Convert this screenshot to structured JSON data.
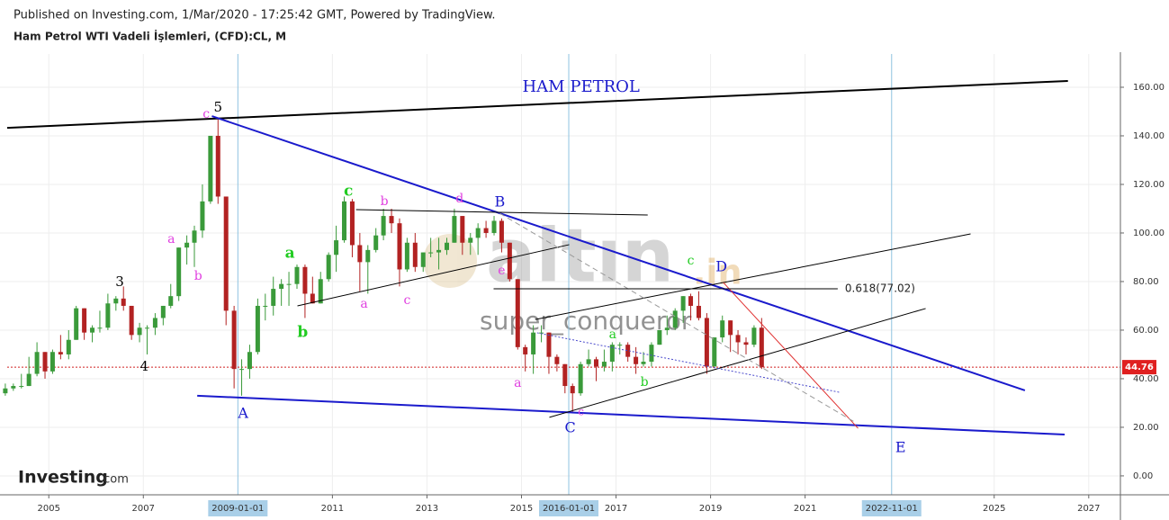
{
  "chart_data": {
    "type": "candlestick",
    "title": "Published on Investing.com, 1/Mar/2020 - 17:25:42 GMT, Powered by TradingView.",
    "subtitle": "Ham Petrol WTI Vadeli İşlemleri, (CFD):CL, M",
    "up_color": "#3a9a3a",
    "down_color": "#b22222",
    "xlim": [
      2004.12,
      2027.67
    ],
    "ylim": [
      -7.8,
      173.7
    ],
    "xticks": [
      2005,
      2007,
      2011,
      2013,
      2015,
      2017,
      2019,
      2021,
      2025,
      2027
    ],
    "yticks": [
      {
        "value": 0,
        "label": "0.00"
      },
      {
        "value": 20,
        "label": "20.00"
      },
      {
        "value": 40,
        "label": "40.00"
      },
      {
        "value": 60,
        "label": "60.00"
      },
      {
        "value": 80,
        "label": "80.00"
      },
      {
        "value": 100,
        "label": "100.00"
      },
      {
        "value": 120,
        "label": "120.00"
      },
      {
        "value": 140,
        "label": "140.00"
      },
      {
        "value": 160,
        "label": "160.00"
      }
    ],
    "grid": true,
    "vlines": [
      {
        "value": 2009.0,
        "label": "2009-01-01"
      },
      {
        "value": 2016.0,
        "label": "2016-01-01"
      },
      {
        "value": 2022.83,
        "label": "2022-11-01"
      }
    ],
    "price_line": 44.76,
    "x": [
      2004.08,
      2004.25,
      2004.42,
      2004.58,
      2004.75,
      2004.92,
      2005.08,
      2005.25,
      2005.42,
      2005.58,
      2005.75,
      2005.92,
      2006.08,
      2006.25,
      2006.42,
      2006.58,
      2006.75,
      2006.92,
      2007.08,
      2007.25,
      2007.42,
      2007.58,
      2007.75,
      2007.92,
      2008.08,
      2008.25,
      2008.42,
      2008.58,
      2008.75,
      2008.92,
      2009.08,
      2009.25,
      2009.42,
      2009.58,
      2009.75,
      2009.92,
      2010.08,
      2010.25,
      2010.42,
      2010.58,
      2010.75,
      2010.92,
      2011.08,
      2011.25,
      2011.42,
      2011.58,
      2011.75,
      2011.92,
      2012.08,
      2012.25,
      2012.42,
      2012.58,
      2012.75,
      2012.92,
      2013.08,
      2013.25,
      2013.42,
      2013.58,
      2013.75,
      2013.92,
      2014.08,
      2014.25,
      2014.42,
      2014.58,
      2014.75,
      2014.92,
      2015.08,
      2015.25,
      2015.42,
      2015.58,
      2015.75,
      2015.92,
      2016.08,
      2016.25,
      2016.42,
      2016.58,
      2016.75,
      2016.92,
      2017.08,
      2017.25,
      2017.42,
      2017.58,
      2017.75,
      2017.92,
      2018.08,
      2018.25,
      2018.42,
      2018.58,
      2018.75,
      2018.92,
      2019.08,
      2019.25,
      2019.42,
      2019.58,
      2019.75,
      2019.92,
      2020.08
    ],
    "values": [
      [
        34,
        38,
        33,
        36
      ],
      [
        36,
        38,
        35,
        37
      ],
      [
        37,
        42,
        36,
        37
      ],
      [
        37,
        49,
        37,
        42
      ],
      [
        42,
        55,
        41,
        51
      ],
      [
        51,
        51,
        40,
        43
      ],
      [
        43,
        52,
        42,
        51
      ],
      [
        51,
        58,
        48,
        50
      ],
      [
        50,
        60,
        48,
        56
      ],
      [
        56,
        70,
        56,
        69
      ],
      [
        69,
        69,
        56,
        59
      ],
      [
        59,
        62,
        55,
        61
      ],
      [
        61,
        68,
        59,
        61
      ],
      [
        61,
        75,
        60,
        71
      ],
      [
        71,
        74,
        68,
        73
      ],
      [
        73,
        78,
        68,
        70
      ],
      [
        70,
        70,
        56,
        58
      ],
      [
        58,
        63,
        55,
        61
      ],
      [
        61,
        62,
        50,
        61
      ],
      [
        61,
        67,
        58,
        65
      ],
      [
        65,
        70,
        62,
        70
      ],
      [
        70,
        79,
        69,
        74
      ],
      [
        74,
        94,
        72,
        94
      ],
      [
        94,
        99,
        87,
        96
      ],
      [
        96,
        103,
        86,
        101
      ],
      [
        101,
        120,
        98,
        113
      ],
      [
        113,
        140,
        112,
        140
      ],
      [
        140,
        147,
        112,
        115
      ],
      [
        115,
        115,
        62,
        68
      ],
      [
        68,
        70,
        36,
        44
      ],
      [
        44,
        48,
        33,
        44
      ],
      [
        44,
        54,
        40,
        51
      ],
      [
        51,
        73,
        50,
        70
      ],
      [
        70,
        75,
        64,
        70
      ],
      [
        70,
        82,
        66,
        77
      ],
      [
        77,
        81,
        70,
        79
      ],
      [
        79,
        84,
        70,
        79
      ],
      [
        79,
        87,
        77,
        86
      ],
      [
        86,
        87,
        65,
        75
      ],
      [
        75,
        82,
        71,
        71
      ],
      [
        71,
        84,
        71,
        81
      ],
      [
        81,
        92,
        80,
        91
      ],
      [
        91,
        103,
        84,
        97
      ],
      [
        97,
        115,
        96,
        113
      ],
      [
        113,
        114,
        90,
        95
      ],
      [
        95,
        100,
        76,
        88
      ],
      [
        88,
        95,
        75,
        93
      ],
      [
        93,
        102,
        92,
        99
      ],
      [
        99,
        110,
        97,
        107
      ],
      [
        107,
        110,
        100,
        104
      ],
      [
        104,
        106,
        78,
        85
      ],
      [
        85,
        98,
        84,
        96
      ],
      [
        96,
        100,
        84,
        86
      ],
      [
        86,
        92,
        84,
        92
      ],
      [
        92,
        98,
        90,
        92
      ],
      [
        92,
        98,
        85,
        93
      ],
      [
        93,
        98,
        91,
        96
      ],
      [
        96,
        110,
        96,
        107
      ],
      [
        107,
        107,
        91,
        96
      ],
      [
        96,
        100,
        91,
        98
      ],
      [
        98,
        104,
        91,
        102
      ],
      [
        102,
        105,
        98,
        100
      ],
      [
        100,
        107,
        99,
        105
      ],
      [
        105,
        106,
        92,
        96
      ],
      [
        96,
        96,
        80,
        81
      ],
      [
        81,
        81,
        52,
        53
      ],
      [
        53,
        54,
        43,
        50
      ],
      [
        50,
        62,
        42,
        59
      ],
      [
        59,
        62,
        55,
        59
      ],
      [
        59,
        59,
        42,
        49
      ],
      [
        49,
        50,
        43,
        46
      ],
      [
        46,
        46,
        34,
        37
      ],
      [
        37,
        38,
        26,
        34
      ],
      [
        34,
        47,
        33,
        46
      ],
      [
        46,
        52,
        45,
        48
      ],
      [
        48,
        49,
        39,
        45
      ],
      [
        45,
        52,
        43,
        47
      ],
      [
        47,
        55,
        43,
        54
      ],
      [
        54,
        55,
        50,
        54
      ],
      [
        54,
        55,
        47,
        49
      ],
      [
        49,
        53,
        42,
        46
      ],
      [
        46,
        51,
        45,
        47
      ],
      [
        47,
        55,
        45,
        54
      ],
      [
        54,
        60,
        54,
        60
      ],
      [
        60,
        66,
        58,
        61
      ],
      [
        61,
        69,
        60,
        68
      ],
      [
        68,
        74,
        63,
        74
      ],
      [
        74,
        75,
        64,
        70
      ],
      [
        70,
        76,
        64,
        65
      ],
      [
        65,
        67,
        42,
        45
      ],
      [
        45,
        57,
        45,
        57
      ],
      [
        57,
        66,
        55,
        64
      ],
      [
        64,
        64,
        51,
        58
      ],
      [
        58,
        60,
        50,
        55
      ],
      [
        55,
        57,
        50,
        54
      ],
      [
        54,
        62,
        53,
        61
      ],
      [
        61,
        65,
        44,
        44.76
      ]
    ],
    "lines": [
      {
        "x": [
          2004.12,
          2026.56
        ],
        "y": [
          143.3,
          162.6
        ],
        "color": "#000000",
        "width": 2,
        "style": "solid"
      },
      {
        "x": [
          2008.45,
          2025.65
        ],
        "y": [
          148.1,
          35.2
        ],
        "color": "#1a1acc",
        "width": 2,
        "style": "solid"
      },
      {
        "x": [
          2008.14,
          2026.49
        ],
        "y": [
          33.0,
          17.0
        ],
        "color": "#1a1acc",
        "width": 2,
        "style": "solid"
      },
      {
        "x": [
          2011.5,
          2017.67
        ],
        "y": [
          109.6,
          107.4
        ],
        "color": "#000000",
        "width": 1,
        "style": "solid"
      },
      {
        "x": [
          2010.26,
          2016.01
        ],
        "y": [
          70.0,
          95.2
        ],
        "color": "#000000",
        "width": 1,
        "style": "solid"
      },
      {
        "x": [
          2015.29,
          2024.5
        ],
        "y": [
          64.4,
          99.6
        ],
        "color": "#000000",
        "width": 1,
        "style": "solid"
      },
      {
        "x": [
          2015.59,
          2023.55
        ],
        "y": [
          24.1,
          68.9
        ],
        "color": "#000000",
        "width": 1,
        "style": "solid"
      },
      {
        "x": [
          2019.27,
          2022.12
        ],
        "y": [
          79.6,
          19.6
        ],
        "color": "#e03030",
        "width": 1,
        "style": "solid"
      },
      {
        "x": [
          2014.54,
          2022.07
        ],
        "y": [
          108.1,
          21.9
        ],
        "color": "#999999",
        "width": 1,
        "style": "dashed"
      },
      {
        "x": [
          2015.33,
          2021.73
        ],
        "y": [
          58.9,
          34.4
        ],
        "color": "#4a4acc",
        "width": 1,
        "style": "dotted"
      },
      {
        "x": [
          2014.41,
          2021.69
        ],
        "y": [
          77.02,
          77.02
        ],
        "color": "#000000",
        "width": 1,
        "style": "solid",
        "label": "0.618(77.02)"
      }
    ],
    "annotations": [
      {
        "text": "HAM PETROL",
        "x": 2016.26,
        "y": 160,
        "color": "#1a1acc",
        "size": 18
      },
      {
        "text": "5",
        "x": 2008.58,
        "y": 151.5,
        "color": "#000000",
        "size": 15
      },
      {
        "text": "c",
        "x": 2008.33,
        "y": 148.9,
        "color": "#e040e0",
        "size": 14
      },
      {
        "text": "3",
        "x": 2006.5,
        "y": 79.6,
        "color": "#000000",
        "size": 15
      },
      {
        "text": "4",
        "x": 2007.02,
        "y": 44.8,
        "color": "#000000",
        "size": 15
      },
      {
        "text": "A",
        "x": 2009.11,
        "y": 25.6,
        "color": "#1a1acc",
        "size": 16
      },
      {
        "text": "a",
        "x": 2007.59,
        "y": 97.4,
        "color": "#e040e0",
        "size": 14
      },
      {
        "text": "b",
        "x": 2008.16,
        "y": 82.2,
        "color": "#e040e0",
        "size": 14
      },
      {
        "text": "a",
        "x": 2010.1,
        "y": 91.5,
        "color": "#22cc22",
        "size": 17
      },
      {
        "text": "b",
        "x": 2010.37,
        "y": 58.9,
        "color": "#22cc22",
        "size": 17
      },
      {
        "text": "c",
        "x": 2011.34,
        "y": 117,
        "color": "#22cc22",
        "size": 17
      },
      {
        "text": "b",
        "x": 2012.1,
        "y": 113,
        "color": "#e040e0",
        "size": 14
      },
      {
        "text": "a",
        "x": 2011.67,
        "y": 70.7,
        "color": "#e040e0",
        "size": 14
      },
      {
        "text": "c",
        "x": 2012.58,
        "y": 72.2,
        "color": "#e040e0",
        "size": 14
      },
      {
        "text": "d",
        "x": 2013.69,
        "y": 114,
        "color": "#e040e0",
        "size": 14
      },
      {
        "text": "B",
        "x": 2014.54,
        "y": 112.6,
        "color": "#1a1acc",
        "size": 16
      },
      {
        "text": "e",
        "x": 2014.58,
        "y": 84.4,
        "color": "#e040e0",
        "size": 14
      },
      {
        "text": "a",
        "x": 2014.92,
        "y": 38.1,
        "color": "#e040e0",
        "size": 14
      },
      {
        "text": "C",
        "x": 2016.03,
        "y": 19.6,
        "color": "#1a1acc",
        "size": 16
      },
      {
        "text": "c",
        "x": 2016.26,
        "y": 26.3,
        "color": "#e040e0",
        "size": 12
      },
      {
        "text": "a",
        "x": 2016.93,
        "y": 58.1,
        "color": "#22cc22",
        "size": 14
      },
      {
        "text": "b",
        "x": 2017.6,
        "y": 38.5,
        "color": "#22cc22",
        "size": 14
      },
      {
        "text": "c",
        "x": 2018.58,
        "y": 88.5,
        "color": "#22cc22",
        "size": 14
      },
      {
        "text": "D",
        "x": 2019.23,
        "y": 85.9,
        "color": "#1a1acc",
        "size": 16
      },
      {
        "text": "E",
        "x": 2023.02,
        "y": 11.5,
        "color": "#1a1acc",
        "size": 16
      }
    ],
    "watermark": {
      "logo": "altın",
      "suffix": ".in",
      "user": "super_conqueror"
    },
    "brand": {
      "name": "Investing",
      "suffix": ".com"
    }
  }
}
